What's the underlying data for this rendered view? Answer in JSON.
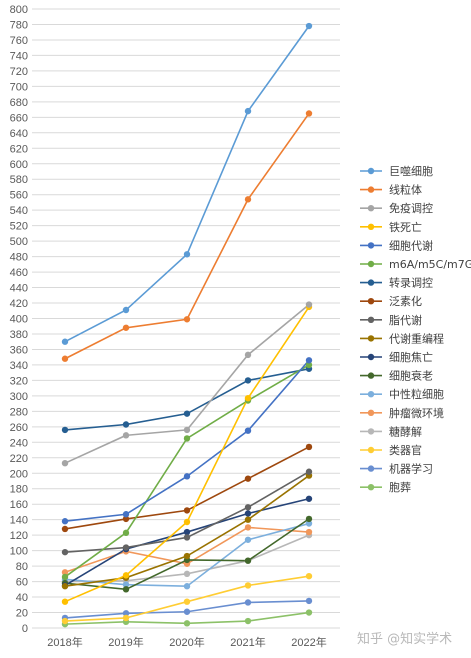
{
  "chart_data": {
    "type": "line",
    "categories": [
      "2018年",
      "2019年",
      "2020年",
      "2021年",
      "2022年"
    ],
    "ylim": [
      0,
      800
    ],
    "ytick_step": 20,
    "grid": true,
    "legend_position": "right",
    "series": [
      {
        "name": "巨噬细胞",
        "color": "#5b9bd5",
        "values": [
          370,
          411,
          483,
          668,
          778
        ]
      },
      {
        "name": "线粒体",
        "color": "#ed7d31",
        "values": [
          348,
          388,
          399,
          554,
          665
        ]
      },
      {
        "name": "免疫调控",
        "color": "#a5a5a5",
        "values": [
          213,
          249,
          256,
          353,
          418
        ]
      },
      {
        "name": "铁死亡",
        "color": "#ffc000",
        "values": [
          34,
          68,
          137,
          297,
          415
        ]
      },
      {
        "name": "细胞代谢",
        "color": "#4472c4",
        "values": [
          138,
          147,
          196,
          255,
          346
        ]
      },
      {
        "name": "m6A/m5C/m7G",
        "color": "#70ad47",
        "values": [
          66,
          123,
          245,
          294,
          340
        ]
      },
      {
        "name": "转录调控",
        "color": "#255e91",
        "values": [
          256,
          263,
          277,
          320,
          335
        ]
      },
      {
        "name": "泛素化",
        "color": "#9e480e",
        "values": [
          128,
          141,
          152,
          193,
          234
        ]
      },
      {
        "name": "脂代谢",
        "color": "#636363",
        "values": [
          98,
          104,
          117,
          156,
          202
        ]
      },
      {
        "name": "代谢重编程",
        "color": "#997300",
        "values": [
          54,
          65,
          93,
          140,
          197
        ]
      },
      {
        "name": "细胞焦亡",
        "color": "#264478",
        "values": [
          55,
          102,
          124,
          148,
          167
        ]
      },
      {
        "name": "细胞衰老",
        "color": "#43682b",
        "values": [
          58,
          50,
          88,
          87,
          141
        ]
      },
      {
        "name": "中性粒细胞",
        "color": "#7cafdd",
        "values": [
          63,
          56,
          54,
          114,
          135
        ]
      },
      {
        "name": "肿瘤微环境",
        "color": "#f1975a",
        "values": [
          72,
          99,
          83,
          130,
          124
        ]
      },
      {
        "name": "糖酵解",
        "color": "#b7b7b7",
        "values": [
          60,
          61,
          70,
          87,
          120
        ]
      },
      {
        "name": "类器官",
        "color": "#ffcd33",
        "values": [
          9,
          13,
          34,
          55,
          67
        ]
      },
      {
        "name": "机器学习",
        "color": "#698ed0",
        "values": [
          13,
          19,
          21,
          33,
          35
        ]
      },
      {
        "name": "胞葬",
        "color": "#8cc168",
        "values": [
          5,
          8,
          6,
          9,
          20
        ]
      }
    ]
  },
  "watermark": "知乎 @知实学术"
}
